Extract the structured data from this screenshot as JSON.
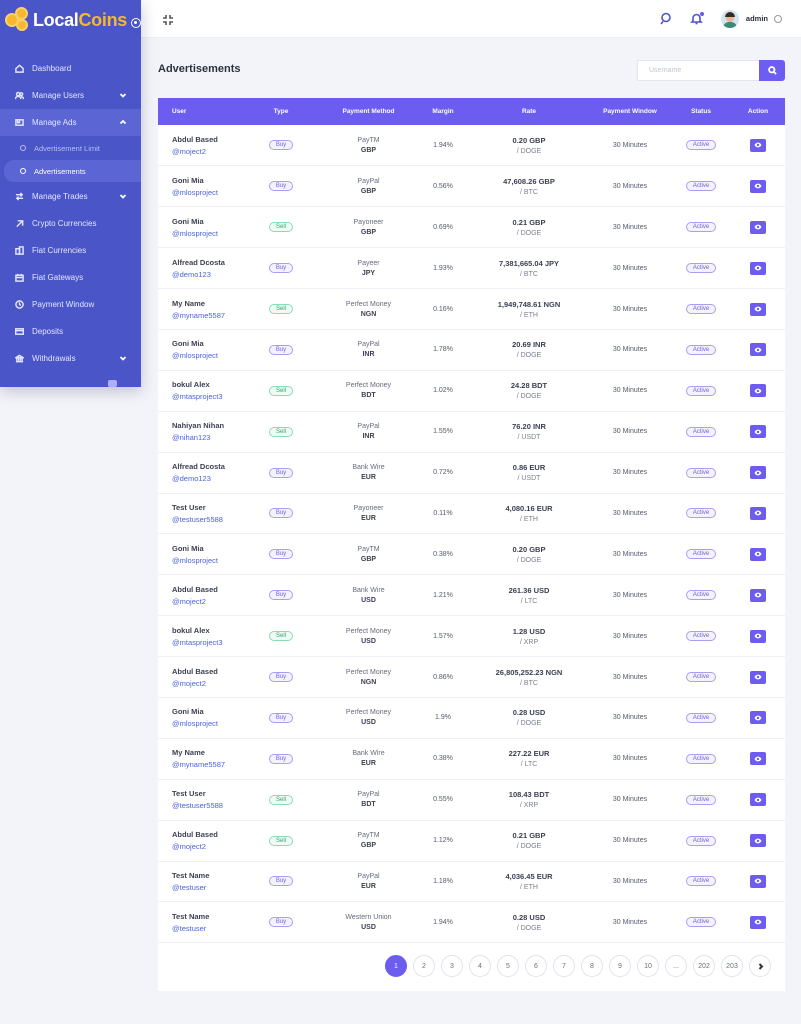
{
  "brand": {
    "name_part1": "Local",
    "name_part2": "Coins"
  },
  "sidebar": {
    "items": [
      {
        "label": "Dashboard",
        "icon": "home-icon"
      },
      {
        "label": "Manage Users",
        "icon": "users-icon",
        "has_caret": true
      },
      {
        "label": "Manage Ads",
        "icon": "ads-icon",
        "has_caret": true,
        "open": true
      },
      {
        "label": "Manage Trades",
        "icon": "exchange-icon",
        "has_caret": true
      },
      {
        "label": "Crypto Currencies",
        "icon": "crypto-icon"
      },
      {
        "label": "Fiat Currencies",
        "icon": "fiat-icon"
      },
      {
        "label": "Fiat Gateways",
        "icon": "gateway-icon"
      },
      {
        "label": "Payment Window",
        "icon": "clock-icon"
      },
      {
        "label": "Deposits",
        "icon": "card-icon"
      },
      {
        "label": "Withdrawals",
        "icon": "bank-icon",
        "has_caret": true
      }
    ],
    "submenu": [
      {
        "label": "Advertisement Limit"
      },
      {
        "label": "Advertisements",
        "active": true
      }
    ]
  },
  "header": {
    "admin_name": "admin"
  },
  "main": {
    "title": "Advertisements",
    "search": {
      "placeholder": "Username"
    }
  },
  "table": {
    "columns": [
      "User",
      "Type",
      "Payment Method",
      "Margin",
      "Rate",
      "Payment Window",
      "Status",
      "Action"
    ],
    "rows": [
      {
        "name": "Abdul Based",
        "handle": "@moject2",
        "type": "Buy",
        "method": "PayTM",
        "currency": "GBP",
        "margin": "1.94%",
        "rate": "0.20 GBP",
        "rate_sub": "/ DOGE",
        "window": "30 Minutes",
        "status": "Active"
      },
      {
        "name": "Goni Mia",
        "handle": "@mlosproject",
        "type": "Buy",
        "method": "PayPal",
        "currency": "GBP",
        "margin": "0.56%",
        "rate": "47,608.26 GBP",
        "rate_sub": "/ BTC",
        "window": "30 Minutes",
        "status": "Active"
      },
      {
        "name": "Goni Mia",
        "handle": "@mlosproject",
        "type": "Sell",
        "method": "Payoneer",
        "currency": "GBP",
        "margin": "0.69%",
        "rate": "0.21 GBP",
        "rate_sub": "/ DOGE",
        "window": "30 Minutes",
        "status": "Active"
      },
      {
        "name": "Alfread Dcosta",
        "handle": "@demo123",
        "type": "Buy",
        "method": "Payeer",
        "currency": "JPY",
        "margin": "1.93%",
        "rate": "7,381,665.04 JPY",
        "rate_sub": "/ BTC",
        "window": "30 Minutes",
        "status": "Active"
      },
      {
        "name": "My Name",
        "handle": "@myname5587",
        "type": "Sell",
        "method": "Perfect Money",
        "currency": "NGN",
        "margin": "0.16%",
        "rate": "1,949,748.61 NGN",
        "rate_sub": "/ ETH",
        "window": "30 Minutes",
        "status": "Active"
      },
      {
        "name": "Goni Mia",
        "handle": "@mlosproject",
        "type": "Buy",
        "method": "PayPal",
        "currency": "INR",
        "margin": "1.78%",
        "rate": "20.69 INR",
        "rate_sub": "/ DOGE",
        "window": "30 Minutes",
        "status": "Active"
      },
      {
        "name": "bokul Alex",
        "handle": "@mtasproject3",
        "type": "Sell",
        "method": "Perfect Money",
        "currency": "BDT",
        "margin": "1.02%",
        "rate": "24.28 BDT",
        "rate_sub": "/ DOGE",
        "window": "30 Minutes",
        "status": "Active"
      },
      {
        "name": "Nahiyan Nihan",
        "handle": "@nihan123",
        "type": "Sell",
        "method": "PayPal",
        "currency": "INR",
        "margin": "1.55%",
        "rate": "76.20 INR",
        "rate_sub": "/ USDT",
        "window": "30 Minutes",
        "status": "Active"
      },
      {
        "name": "Alfread Dcosta",
        "handle": "@demo123",
        "type": "Buy",
        "method": "Bank Wire",
        "currency": "EUR",
        "margin": "0.72%",
        "rate": "0.86 EUR",
        "rate_sub": "/ USDT",
        "window": "30 Minutes",
        "status": "Active"
      },
      {
        "name": "Test User",
        "handle": "@testuser5588",
        "type": "Buy",
        "method": "Payoneer",
        "currency": "EUR",
        "margin": "0.11%",
        "rate": "4,080.16 EUR",
        "rate_sub": "/ ETH",
        "window": "30 Minutes",
        "status": "Active"
      },
      {
        "name": "Goni Mia",
        "handle": "@mlosproject",
        "type": "Buy",
        "method": "PayTM",
        "currency": "GBP",
        "margin": "0.38%",
        "rate": "0.20 GBP",
        "rate_sub": "/ DOGE",
        "window": "30 Minutes",
        "status": "Active"
      },
      {
        "name": "Abdul Based",
        "handle": "@moject2",
        "type": "Buy",
        "method": "Bank Wire",
        "currency": "USD",
        "margin": "1.21%",
        "rate": "261.36 USD",
        "rate_sub": "/ LTC",
        "window": "30 Minutes",
        "status": "Active"
      },
      {
        "name": "bokul Alex",
        "handle": "@mtasproject3",
        "type": "Sell",
        "method": "Perfect Money",
        "currency": "USD",
        "margin": "1.57%",
        "rate": "1.28 USD",
        "rate_sub": "/ XRP",
        "window": "30 Minutes",
        "status": "Active"
      },
      {
        "name": "Abdul Based",
        "handle": "@moject2",
        "type": "Buy",
        "method": "Perfect Money",
        "currency": "NGN",
        "margin": "0.86%",
        "rate": "26,805,252.23 NGN",
        "rate_sub": "/ BTC",
        "window": "30 Minutes",
        "status": "Active"
      },
      {
        "name": "Goni Mia",
        "handle": "@mlosproject",
        "type": "Buy",
        "method": "Perfect Money",
        "currency": "USD",
        "margin": "1.9%",
        "rate": "0.28 USD",
        "rate_sub": "/ DOGE",
        "window": "30 Minutes",
        "status": "Active"
      },
      {
        "name": "My Name",
        "handle": "@myname5587",
        "type": "Buy",
        "method": "Bank Wire",
        "currency": "EUR",
        "margin": "0.38%",
        "rate": "227.22 EUR",
        "rate_sub": "/ LTC",
        "window": "30 Minutes",
        "status": "Active"
      },
      {
        "name": "Test User",
        "handle": "@testuser5588",
        "type": "Sell",
        "method": "PayPal",
        "currency": "BDT",
        "margin": "0.55%",
        "rate": "108.43 BDT",
        "rate_sub": "/ XRP",
        "window": "30 Minutes",
        "status": "Active"
      },
      {
        "name": "Abdul Based",
        "handle": "@moject2",
        "type": "Sell",
        "method": "PayTM",
        "currency": "GBP",
        "margin": "1.12%",
        "rate": "0.21 GBP",
        "rate_sub": "/ DOGE",
        "window": "30 Minutes",
        "status": "Active"
      },
      {
        "name": "Test Name",
        "handle": "@testuser",
        "type": "Buy",
        "method": "PayPal",
        "currency": "EUR",
        "margin": "1.18%",
        "rate": "4,036.45 EUR",
        "rate_sub": "/ ETH",
        "window": "30 Minutes",
        "status": "Active"
      },
      {
        "name": "Test Name",
        "handle": "@testuser",
        "type": "Buy",
        "method": "Western Union",
        "currency": "USD",
        "margin": "1.94%",
        "rate": "0.28 USD",
        "rate_sub": "/ DOGE",
        "window": "30 Minutes",
        "status": "Active"
      }
    ]
  },
  "pagination": {
    "pages": [
      "1",
      "2",
      "3",
      "4",
      "5",
      "6",
      "7",
      "8",
      "9",
      "10",
      "...",
      "202",
      "203"
    ],
    "current": "1"
  },
  "colors": {
    "sidebar": "#4a55c8",
    "accent": "#6c5df0",
    "buy": "#6f63d8",
    "sell": "#2aa86b"
  }
}
